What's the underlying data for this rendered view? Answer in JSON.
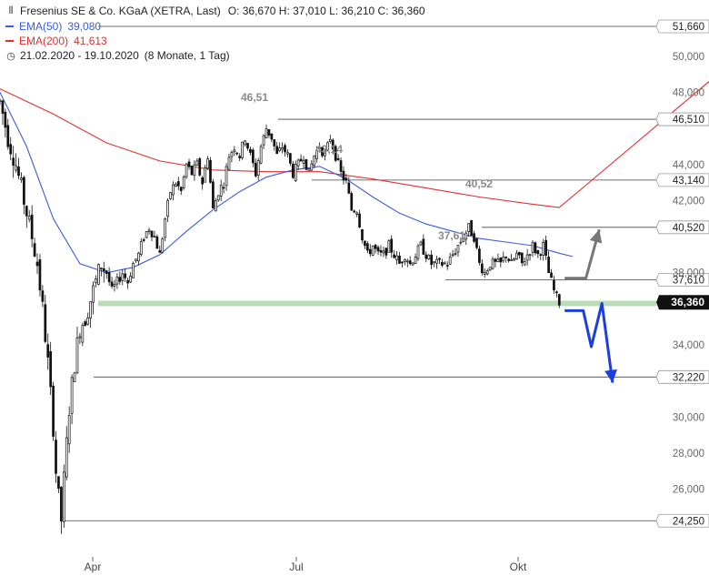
{
  "header": {
    "title": "Fresenius SE & Co. KGaA (XETRA, Last)",
    "ohlc": "O: 36,670  H: 37,010  L: 36,210  C: 36,360",
    "ema50_label": "EMA(50)",
    "ema50_value": "39,080",
    "ema200_label": "EMA(200)",
    "ema200_value": "41,613",
    "period": "21.02.2020 - 19.10.2020",
    "period_detail": "(8 Monate, 1 Tag)",
    "icons": {
      "chart": "candlestick-icon",
      "clock": "clock-icon"
    }
  },
  "colors": {
    "ema50": "#3b5bdb",
    "ema200": "#e03131",
    "candle": "#111111",
    "support_band": "#b9ddb9",
    "blue_arrow": "#1c3de0",
    "gray_arrow": "#777777",
    "level_line": "#444444"
  },
  "chart_data": {
    "type": "candlestick",
    "x_range": [
      "2020-02-21",
      "2020-10-19"
    ],
    "x_ticks": [
      "Apr",
      "Jul",
      "Okt"
    ],
    "ylim": [
      23.5,
      52.5
    ],
    "y_ticks": [
      "50,000",
      "48,000",
      "44,000",
      "42,000",
      "38,000",
      "34,000",
      "30,000",
      "28,000",
      "26,000"
    ],
    "price_path": [
      [
        0,
        47.5
      ],
      [
        3,
        45.5
      ],
      [
        6,
        44
      ],
      [
        9,
        42
      ],
      [
        12,
        40
      ],
      [
        14,
        38.5
      ],
      [
        16,
        36
      ],
      [
        18,
        33
      ],
      [
        20,
        29.5
      ],
      [
        21,
        27
      ],
      [
        22,
        25.5
      ],
      [
        23,
        24.3
      ],
      [
        24,
        26.5
      ],
      [
        26,
        30.5
      ],
      [
        28,
        33
      ],
      [
        30,
        35
      ],
      [
        32,
        35.5
      ],
      [
        34,
        36.5
      ],
      [
        36,
        37.5
      ],
      [
        38,
        38.5
      ],
      [
        40,
        38
      ],
      [
        42,
        37
      ],
      [
        44,
        37.5
      ],
      [
        46,
        38
      ],
      [
        48,
        37.5
      ],
      [
        50,
        38.5
      ],
      [
        52,
        39
      ],
      [
        54,
        40
      ],
      [
        56,
        40.5
      ],
      [
        58,
        40
      ],
      [
        60,
        39
      ],
      [
        62,
        41
      ],
      [
        64,
        42.5
      ],
      [
        66,
        43
      ],
      [
        68,
        42.5
      ],
      [
        70,
        44
      ],
      [
        72,
        43.5
      ],
      [
        74,
        44
      ],
      [
        76,
        43
      ],
      [
        78,
        44.5
      ],
      [
        80,
        41.5
      ],
      [
        82,
        42.5
      ],
      [
        84,
        43
      ],
      [
        86,
        44.5
      ],
      [
        88,
        45
      ],
      [
        90,
        44.5
      ],
      [
        92,
        45.5
      ],
      [
        94,
        44.5
      ],
      [
        96,
        43.5
      ],
      [
        98,
        45
      ],
      [
        100,
        46
      ],
      [
        102,
        45.5
      ],
      [
        104,
        44.5
      ],
      [
        106,
        45
      ],
      [
        108,
        44.5
      ],
      [
        110,
        43.5
      ],
      [
        112,
        44
      ],
      [
        114,
        44.5
      ],
      [
        116,
        43.5
      ],
      [
        118,
        44.5
      ],
      [
        120,
        45
      ],
      [
        122,
        44.5
      ],
      [
        124,
        45.5
      ],
      [
        126,
        44.5
      ],
      [
        128,
        43.5
      ],
      [
        130,
        43
      ],
      [
        132,
        41.5
      ],
      [
        134,
        41.5
      ],
      [
        136,
        40
      ],
      [
        138,
        39
      ],
      [
        140,
        39.5
      ],
      [
        142,
        39
      ],
      [
        144,
        39
      ],
      [
        146,
        39.5
      ],
      [
        148,
        39
      ],
      [
        150,
        38.5
      ],
      [
        152,
        39
      ],
      [
        154,
        38.5
      ],
      [
        156,
        39
      ],
      [
        158,
        39.5
      ],
      [
        160,
        39
      ],
      [
        162,
        38.5
      ],
      [
        164,
        38.5
      ],
      [
        166,
        38.5
      ],
      [
        168,
        38.5
      ],
      [
        170,
        39
      ],
      [
        172,
        39.5
      ],
      [
        174,
        40
      ],
      [
        176,
        40.5
      ],
      [
        178,
        40
      ],
      [
        180,
        38.5
      ],
      [
        182,
        38
      ],
      [
        184,
        38.5
      ],
      [
        186,
        38.5
      ],
      [
        188,
        38.5
      ],
      [
        190,
        39
      ],
      [
        192,
        38.5
      ],
      [
        194,
        39
      ],
      [
        196,
        38.5
      ],
      [
        198,
        39
      ],
      [
        200,
        39.5
      ],
      [
        202,
        39
      ],
      [
        204,
        39.5
      ],
      [
        206,
        38
      ],
      [
        208,
        37
      ],
      [
        210,
        36.36
      ]
    ],
    "ema50": [
      [
        0,
        48
      ],
      [
        10,
        45
      ],
      [
        20,
        41
      ],
      [
        30,
        38.5
      ],
      [
        40,
        38
      ],
      [
        50,
        38.3
      ],
      [
        60,
        39
      ],
      [
        70,
        40.3
      ],
      [
        80,
        41.5
      ],
      [
        90,
        42.5
      ],
      [
        100,
        43.3
      ],
      [
        110,
        43.7
      ],
      [
        120,
        43.9
      ],
      [
        130,
        43.2
      ],
      [
        140,
        42.2
      ],
      [
        150,
        41.3
      ],
      [
        160,
        40.7
      ],
      [
        170,
        40.3
      ],
      [
        180,
        39.9
      ],
      [
        190,
        39.7
      ],
      [
        200,
        39.5
      ],
      [
        210,
        39.08
      ]
    ],
    "ema200": [
      [
        0,
        48.2
      ],
      [
        20,
        46.8
      ],
      [
        40,
        45.2
      ],
      [
        60,
        44.2
      ],
      [
        80,
        43.7
      ],
      [
        100,
        43.6
      ],
      [
        120,
        43.6
      ],
      [
        140,
        43.2
      ],
      [
        160,
        42.7
      ],
      [
        180,
        42.2
      ],
      [
        200,
        41.8
      ],
      [
        210,
        41.613
      ]
    ],
    "level_lines": [
      {
        "value": 51.66,
        "label": "51,660"
      },
      {
        "value": 46.51,
        "label": "46,510"
      },
      {
        "value": 43.14,
        "label": "43,140"
      },
      {
        "value": 40.52,
        "label": "40,520"
      },
      {
        "value": 37.61,
        "label": "37,610"
      },
      {
        "value": 32.22,
        "label": "32,220"
      },
      {
        "value": 24.25,
        "label": "24,250"
      }
    ],
    "last_price": {
      "value": 36.36,
      "label": "36,360"
    },
    "annotations": [
      {
        "x": 107,
        "value": 46.51,
        "text": "46,51"
      },
      {
        "x": 122,
        "value": 43.14,
        "text": "43,14"
      },
      {
        "x": 175,
        "value": 40.52,
        "text": "40,52"
      },
      {
        "x": 168,
        "value": 37.61,
        "text": "37,61"
      }
    ],
    "support_zone": {
      "value": 36.3
    },
    "scenario_up": [
      [
        212,
        37.7
      ],
      [
        220,
        37.7
      ],
      [
        225,
        40.4
      ]
    ],
    "scenario_down": [
      [
        212,
        35.9
      ],
      [
        219,
        35.9
      ],
      [
        222,
        33.9
      ],
      [
        226,
        36.3
      ],
      [
        230,
        31.9
      ]
    ],
    "grid": false,
    "legend": "top-left"
  }
}
